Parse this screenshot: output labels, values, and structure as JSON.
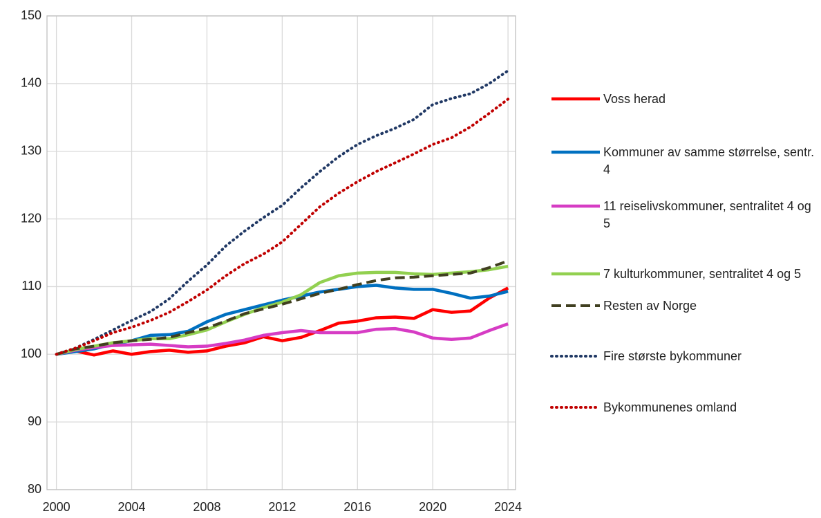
{
  "chart_data": {
    "type": "line",
    "x": [
      2000,
      2001,
      2002,
      2003,
      2004,
      2005,
      2006,
      2007,
      2008,
      2009,
      2010,
      2011,
      2012,
      2013,
      2014,
      2015,
      2016,
      2017,
      2018,
      2019,
      2020,
      2021,
      2022,
      2023,
      2024
    ],
    "xlim": [
      1999.5,
      2024.4
    ],
    "xticks": [
      2000,
      2004,
      2008,
      2012,
      2016,
      2020,
      2024
    ],
    "ylim": [
      80,
      150
    ],
    "yticks": [
      80,
      90,
      100,
      110,
      120,
      130,
      140,
      150
    ],
    "grid": true,
    "legend": "right",
    "series": [
      {
        "name": "Voss herad",
        "color": "#ff0000",
        "dash": "solid",
        "values": [
          100,
          100.5,
          99.9,
          100.5,
          100.0,
          100.4,
          100.6,
          100.3,
          100.5,
          101.2,
          101.7,
          102.6,
          102.0,
          102.5,
          103.5,
          104.6,
          104.9,
          105.4,
          105.5,
          105.3,
          106.6,
          106.2,
          106.4,
          108.3,
          109.8
        ]
      },
      {
        "name": "Kommuner av samme størrelse, sentr. 4",
        "color": "#0070c0",
        "dash": "solid",
        "values": [
          100,
          100.4,
          100.8,
          101.5,
          102.0,
          102.8,
          102.9,
          103.4,
          104.8,
          105.9,
          106.6,
          107.3,
          108.0,
          108.6,
          109.2,
          109.6,
          110.0,
          110.2,
          109.8,
          109.6,
          109.6,
          109.0,
          108.3,
          108.6,
          109.3
        ]
      },
      {
        "name": "11 reiselivskommuner, sentralitet 4 og 5",
        "color": "#d63cc4",
        "dash": "solid",
        "values": [
          100,
          100.6,
          101.0,
          101.3,
          101.4,
          101.5,
          101.3,
          101.1,
          101.2,
          101.6,
          102.1,
          102.8,
          103.2,
          103.5,
          103.2,
          103.2,
          103.2,
          103.7,
          103.8,
          103.3,
          102.4,
          102.2,
          102.4,
          103.5,
          104.5
        ]
      },
      {
        "name": "7 kulturkommuner, sentralitet 4 og 5",
        "color": "#92d050",
        "dash": "solid",
        "values": [
          100,
          100.7,
          101.2,
          101.7,
          102.0,
          102.3,
          102.3,
          102.9,
          103.6,
          104.8,
          105.9,
          106.9,
          107.7,
          108.8,
          110.6,
          111.6,
          112.0,
          112.1,
          112.1,
          111.9,
          111.8,
          112.0,
          112.2,
          112.5,
          113.0
        ]
      },
      {
        "name": "Resten av Norge",
        "color": "#403f20",
        "dash": "dashed",
        "values": [
          100,
          100.8,
          101.2,
          101.7,
          102.0,
          102.2,
          102.5,
          103.2,
          103.9,
          104.9,
          106.0,
          106.7,
          107.4,
          108.2,
          109.0,
          109.6,
          110.3,
          110.9,
          111.3,
          111.4,
          111.6,
          111.8,
          112.0,
          112.8,
          113.8
        ]
      },
      {
        "name": "Fire største bykommuner",
        "color": "#203864",
        "dash": "dotted",
        "values": [
          100,
          100.9,
          102.2,
          103.6,
          105.0,
          106.3,
          108.2,
          110.8,
          113.2,
          116.0,
          118.2,
          120.2,
          122.0,
          124.6,
          127.0,
          129.2,
          131.0,
          132.3,
          133.4,
          134.7,
          136.9,
          137.8,
          138.5,
          140.0,
          141.9
        ]
      },
      {
        "name": "Bykommunenes omland",
        "color": "#c00000",
        "dash": "dotted",
        "values": [
          100,
          100.9,
          102.0,
          103.2,
          104.0,
          105.0,
          106.2,
          107.8,
          109.5,
          111.6,
          113.4,
          114.8,
          116.6,
          119.2,
          121.8,
          123.8,
          125.5,
          127.0,
          128.3,
          129.6,
          131.0,
          132.0,
          133.6,
          135.6,
          137.7
        ]
      }
    ]
  }
}
